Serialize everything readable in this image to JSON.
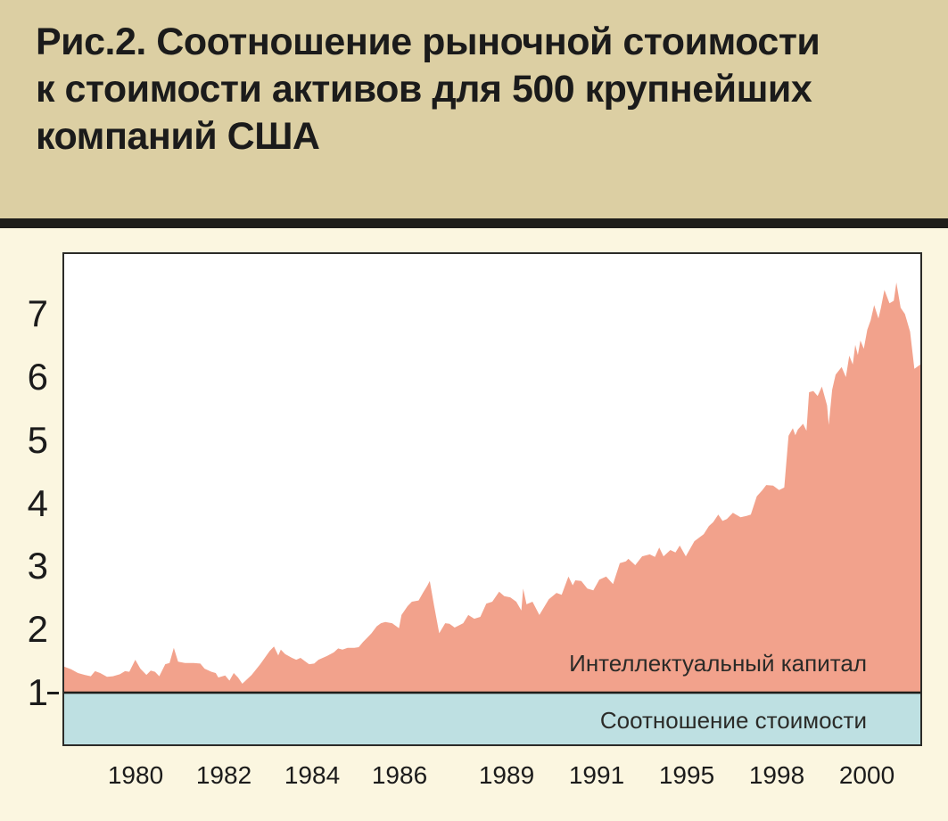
{
  "header": {
    "title_lines": [
      "Рис.2. Соотношение рыночной стоимости",
      "к стоимости активов для 500 крупнейших",
      "компаний США"
    ]
  },
  "chart_data": {
    "type": "area",
    "title": "Рис.2. Соотношение рыночной стоимости к стоимости активов для 500 крупнейших компаний США",
    "xlabel": "",
    "ylabel": "",
    "grid": false,
    "legend_position": "none",
    "ylim": [
      0.18,
      7.95
    ],
    "y_ticks": [
      1,
      2,
      3,
      4,
      5,
      6,
      7
    ],
    "x_ticks": [
      {
        "label": "1980",
        "pos": 0.085
      },
      {
        "label": "1982",
        "pos": 0.189
      },
      {
        "label": "1984",
        "pos": 0.292
      },
      {
        "label": "1986",
        "pos": 0.394
      },
      {
        "label": "1989",
        "pos": 0.519
      },
      {
        "label": "1991",
        "pos": 0.624
      },
      {
        "label": "1995",
        "pos": 0.729
      },
      {
        "label": "1998",
        "pos": 0.834
      },
      {
        "label": "2000",
        "pos": 0.94
      }
    ],
    "band": {
      "label": "Соотношение стоимости",
      "from": 0.18,
      "to": 1.0
    },
    "series": [
      {
        "name": "Интеллектуальный капитал",
        "x_unit": "fraction-of-plot-width (years ≈1979–2001)",
        "points": [
          [
            0.0,
            1.41
          ],
          [
            0.008,
            1.37
          ],
          [
            0.016,
            1.31
          ],
          [
            0.024,
            1.28
          ],
          [
            0.031,
            1.26
          ],
          [
            0.036,
            1.34
          ],
          [
            0.042,
            1.31
          ],
          [
            0.05,
            1.25
          ],
          [
            0.057,
            1.26
          ],
          [
            0.065,
            1.29
          ],
          [
            0.071,
            1.34
          ],
          [
            0.076,
            1.33
          ],
          [
            0.083,
            1.52
          ],
          [
            0.089,
            1.38
          ],
          [
            0.096,
            1.28
          ],
          [
            0.101,
            1.35
          ],
          [
            0.106,
            1.33
          ],
          [
            0.111,
            1.26
          ],
          [
            0.118,
            1.45
          ],
          [
            0.123,
            1.47
          ],
          [
            0.128,
            1.71
          ],
          [
            0.133,
            1.49
          ],
          [
            0.141,
            1.47
          ],
          [
            0.151,
            1.47
          ],
          [
            0.159,
            1.46
          ],
          [
            0.164,
            1.38
          ],
          [
            0.172,
            1.33
          ],
          [
            0.177,
            1.31
          ],
          [
            0.18,
            1.24
          ],
          [
            0.188,
            1.27
          ],
          [
            0.193,
            1.19
          ],
          [
            0.198,
            1.31
          ],
          [
            0.203,
            1.24
          ],
          [
            0.208,
            1.14
          ],
          [
            0.219,
            1.28
          ],
          [
            0.229,
            1.45
          ],
          [
            0.24,
            1.66
          ],
          [
            0.245,
            1.73
          ],
          [
            0.25,
            1.59
          ],
          [
            0.253,
            1.68
          ],
          [
            0.258,
            1.61
          ],
          [
            0.266,
            1.55
          ],
          [
            0.271,
            1.52
          ],
          [
            0.276,
            1.55
          ],
          [
            0.281,
            1.5
          ],
          [
            0.286,
            1.45
          ],
          [
            0.292,
            1.46
          ],
          [
            0.297,
            1.52
          ],
          [
            0.302,
            1.55
          ],
          [
            0.307,
            1.58
          ],
          [
            0.315,
            1.64
          ],
          [
            0.32,
            1.7
          ],
          [
            0.325,
            1.68
          ],
          [
            0.331,
            1.71
          ],
          [
            0.339,
            1.71
          ],
          [
            0.344,
            1.72
          ],
          [
            0.349,
            1.8
          ],
          [
            0.354,
            1.87
          ],
          [
            0.359,
            1.94
          ],
          [
            0.365,
            2.05
          ],
          [
            0.37,
            2.1
          ],
          [
            0.375,
            2.12
          ],
          [
            0.383,
            2.1
          ],
          [
            0.391,
            2.02
          ],
          [
            0.394,
            2.23
          ],
          [
            0.401,
            2.37
          ],
          [
            0.406,
            2.44
          ],
          [
            0.414,
            2.46
          ],
          [
            0.419,
            2.58
          ],
          [
            0.424,
            2.69
          ],
          [
            0.427,
            2.77
          ],
          [
            0.432,
            2.38
          ],
          [
            0.438,
            1.94
          ],
          [
            0.445,
            2.1
          ],
          [
            0.45,
            2.09
          ],
          [
            0.456,
            2.03
          ],
          [
            0.466,
            2.1
          ],
          [
            0.472,
            2.23
          ],
          [
            0.479,
            2.17
          ],
          [
            0.486,
            2.2
          ],
          [
            0.493,
            2.41
          ],
          [
            0.5,
            2.44
          ],
          [
            0.508,
            2.6
          ],
          [
            0.514,
            2.53
          ],
          [
            0.521,
            2.51
          ],
          [
            0.528,
            2.44
          ],
          [
            0.534,
            2.3
          ],
          [
            0.536,
            2.65
          ],
          [
            0.54,
            2.4
          ],
          [
            0.547,
            2.44
          ],
          [
            0.555,
            2.23
          ],
          [
            0.566,
            2.48
          ],
          [
            0.575,
            2.58
          ],
          [
            0.581,
            2.55
          ],
          [
            0.589,
            2.84
          ],
          [
            0.594,
            2.7
          ],
          [
            0.597,
            2.78
          ],
          [
            0.604,
            2.77
          ],
          [
            0.611,
            2.65
          ],
          [
            0.618,
            2.62
          ],
          [
            0.625,
            2.79
          ],
          [
            0.633,
            2.84
          ],
          [
            0.641,
            2.72
          ],
          [
            0.649,
            3.05
          ],
          [
            0.656,
            3.08
          ],
          [
            0.659,
            3.12
          ],
          [
            0.667,
            3.02
          ],
          [
            0.675,
            3.16
          ],
          [
            0.684,
            3.19
          ],
          [
            0.69,
            3.15
          ],
          [
            0.695,
            3.3
          ],
          [
            0.7,
            3.16
          ],
          [
            0.708,
            3.26
          ],
          [
            0.714,
            3.22
          ],
          [
            0.719,
            3.33
          ],
          [
            0.726,
            3.16
          ],
          [
            0.731,
            3.28
          ],
          [
            0.736,
            3.4
          ],
          [
            0.747,
            3.51
          ],
          [
            0.753,
            3.64
          ],
          [
            0.758,
            3.7
          ],
          [
            0.764,
            3.82
          ],
          [
            0.769,
            3.72
          ],
          [
            0.774,
            3.75
          ],
          [
            0.781,
            3.85
          ],
          [
            0.79,
            3.78
          ],
          [
            0.797,
            3.8
          ],
          [
            0.802,
            3.82
          ],
          [
            0.809,
            4.11
          ],
          [
            0.815,
            4.2
          ],
          [
            0.82,
            4.29
          ],
          [
            0.828,
            4.28
          ],
          [
            0.835,
            4.21
          ],
          [
            0.841,
            4.25
          ],
          [
            0.846,
            5.07
          ],
          [
            0.851,
            5.19
          ],
          [
            0.854,
            5.08
          ],
          [
            0.857,
            5.17
          ],
          [
            0.863,
            5.26
          ],
          [
            0.867,
            5.15
          ],
          [
            0.87,
            5.76
          ],
          [
            0.875,
            5.78
          ],
          [
            0.88,
            5.7
          ],
          [
            0.885,
            5.85
          ],
          [
            0.891,
            5.55
          ],
          [
            0.893,
            5.24
          ],
          [
            0.897,
            5.8
          ],
          [
            0.901,
            6.04
          ],
          [
            0.908,
            6.16
          ],
          [
            0.913,
            6.0
          ],
          [
            0.917,
            6.34
          ],
          [
            0.921,
            6.2
          ],
          [
            0.924,
            6.51
          ],
          [
            0.927,
            6.35
          ],
          [
            0.93,
            6.58
          ],
          [
            0.934,
            6.45
          ],
          [
            0.938,
            6.75
          ],
          [
            0.942,
            6.9
          ],
          [
            0.946,
            7.14
          ],
          [
            0.951,
            6.93
          ],
          [
            0.954,
            7.1
          ],
          [
            0.958,
            7.38
          ],
          [
            0.964,
            7.17
          ],
          [
            0.969,
            7.21
          ],
          [
            0.972,
            7.5
          ],
          [
            0.977,
            7.1
          ],
          [
            0.982,
            7.0
          ],
          [
            0.988,
            6.72
          ],
          [
            0.993,
            6.13
          ],
          [
            1.0,
            6.2
          ]
        ]
      }
    ],
    "colors": {
      "area": "#F2A28C",
      "band": "#BEE0E2",
      "plot_bg": "#FFFFFF",
      "header_bg": "#DCCFA3",
      "page_bg": "#FBF6E0",
      "divider": "#1E1D1A",
      "axis": "#2B2B28",
      "text": "#1B1B1B"
    }
  }
}
